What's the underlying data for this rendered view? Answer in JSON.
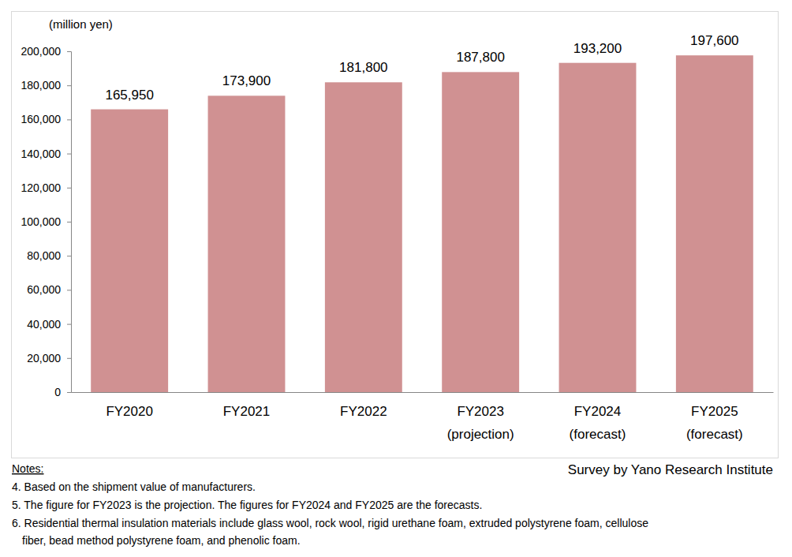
{
  "chart_data": {
    "type": "bar",
    "y_label": "(million yen)",
    "categories": [
      "FY2020",
      "FY2021",
      "FY2022",
      "FY2023\n(projection)",
      "FY2024\n(forecast)",
      "FY2025\n(forecast)"
    ],
    "values": [
      165950,
      173900,
      181800,
      187800,
      193200,
      197600
    ],
    "value_labels": [
      "165,950",
      "173,900",
      "181,800",
      "187,800",
      "193,200",
      "197,600"
    ],
    "data_labels": true,
    "color": "#d09192",
    "ylim": [
      0,
      200000
    ],
    "yticks": [
      0,
      {
        "value": 20000,
        "label": "20,000"
      },
      {
        "value": 40000,
        "label": "40,000"
      },
      {
        "value": 60000,
        "label": "60,000"
      },
      {
        "value": 80000,
        "label": "80,000"
      },
      {
        "value": 100000,
        "label": "100,000"
      },
      {
        "value": 120000,
        "label": "120,000"
      },
      {
        "value": 140000,
        "label": "140,000"
      },
      {
        "value": 160000,
        "label": "160,000"
      },
      {
        "value": 180000,
        "label": "180,000"
      },
      {
        "value": 200000,
        "label": "200,000"
      }
    ],
    "grid": false,
    "notes_title": "Notes:",
    "annotations": [
      "4. Based on the shipment value of manufacturers.",
      "5. The figure for FY2023 is the projection. The figures for FY2024 and FY2025 are the forecasts.",
      "6. Residential thermal insulation materials include glass wool, rock wool, rigid urethane foam, extruded polystyrene foam, cellulose\nfiber, bead method polystyrene foam, and phenolic foam."
    ],
    "source": "Survey by Yano Research Institute"
  }
}
